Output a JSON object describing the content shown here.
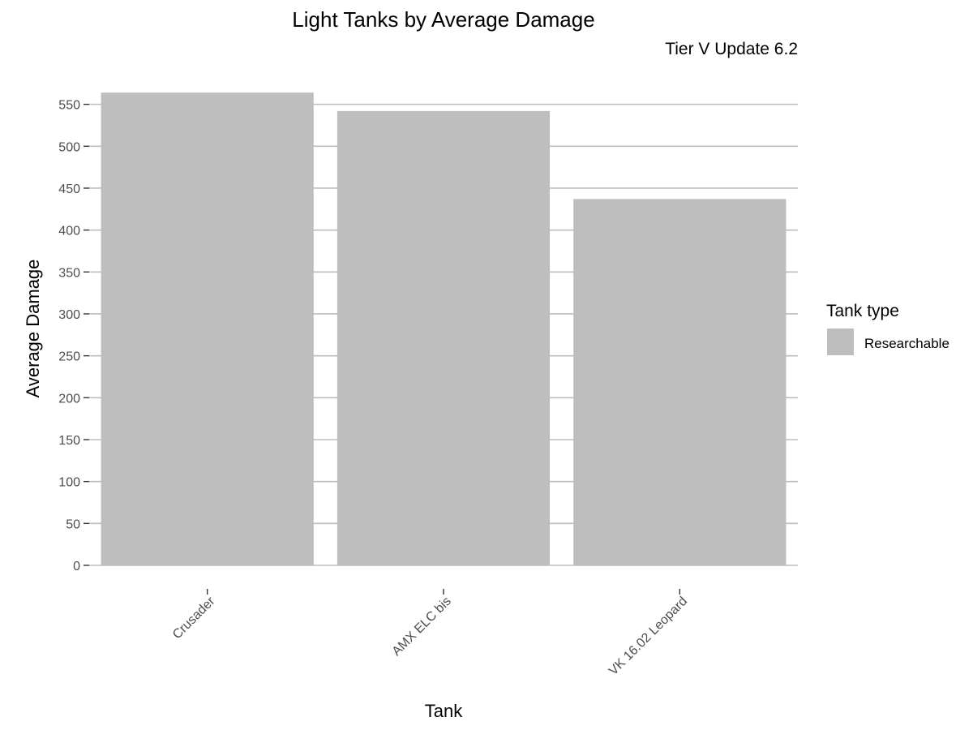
{
  "chart_data": {
    "type": "bar",
    "title": "Light Tanks by Average Damage",
    "subtitle": "Tier V Update 6.2",
    "xlabel": "Tank",
    "ylabel": "Average Damage",
    "categories": [
      "Crusader",
      "AMX ELC bis",
      "VK 16.02 Leopard"
    ],
    "series": [
      {
        "name": "Researchable",
        "values": [
          564,
          542,
          437
        ]
      }
    ],
    "ylim": [
      0,
      570
    ],
    "yticks": [
      0,
      50,
      100,
      150,
      200,
      250,
      300,
      350,
      400,
      450,
      500,
      550
    ],
    "grid": true,
    "legend": {
      "title": "Tank type",
      "placement": "right",
      "entries": [
        "Researchable"
      ]
    },
    "colors": {
      "bar": "#bebebe",
      "grid": "#bdbdbd",
      "tick_text": "#4d4d4d"
    }
  }
}
